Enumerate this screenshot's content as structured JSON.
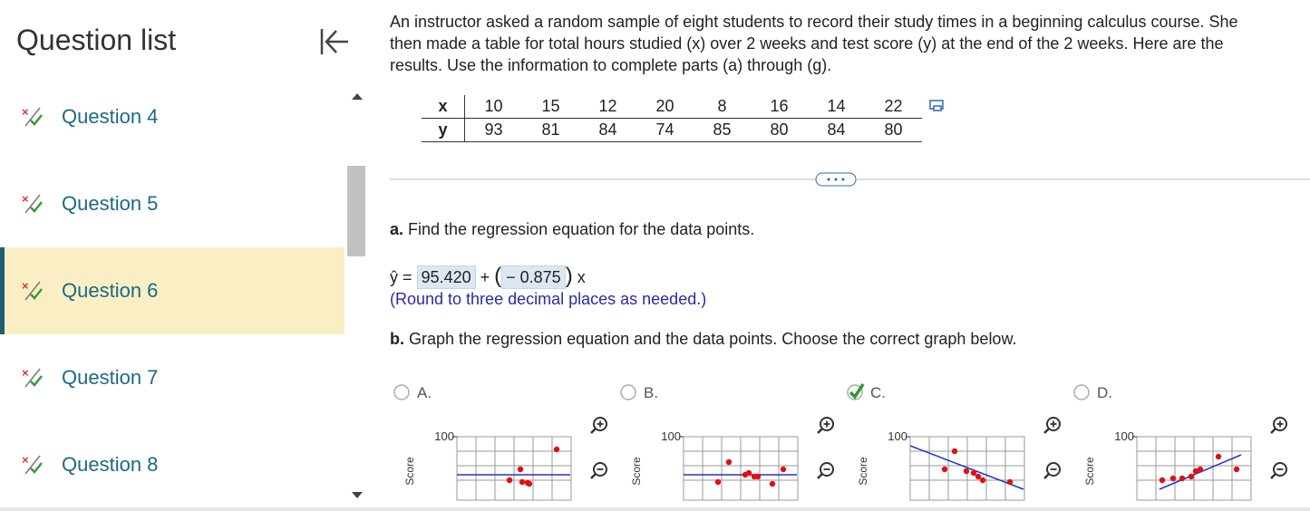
{
  "sidebar": {
    "title": "Question list",
    "questions": [
      "Question 4",
      "Question 5",
      "Question 6",
      "Question 7",
      "Question 8"
    ]
  },
  "problem": {
    "intro_lines": [
      "An instructor asked a random sample of eight students to record their study times in a beginning calculus course. She",
      "then made a table for total hours studied (x) over 2 weeks and test score (y) at the end of the 2 weeks. Here are the",
      "results. Use the information to complete parts (a) through (g)."
    ],
    "table": {
      "x_label": "x",
      "y_label": "y",
      "x": [
        10,
        15,
        12,
        20,
        8,
        16,
        14,
        22
      ],
      "y": [
        93,
        81,
        84,
        74,
        85,
        80,
        84,
        80
      ]
    }
  },
  "part_a": {
    "label": "a.",
    "text": "Find the regression equation for the data points.",
    "yhat": "ŷ",
    "equals_plus": "=",
    "intercept": "95.420",
    "slope": "− 0.875",
    "x_var": "x",
    "note": "(Round to three decimal places as needed.)"
  },
  "part_b": {
    "label": "b.",
    "text": "Graph the regression equation and the data points. Choose the correct graph below.",
    "options": [
      {
        "label": "A.",
        "y_max": "100",
        "axis_label": "Score"
      },
      {
        "label": "B.",
        "y_max": "100",
        "axis_label": "Score"
      },
      {
        "label": "C.",
        "y_max": "100",
        "axis_label": "Score"
      },
      {
        "label": "D.",
        "y_max": "100",
        "axis_label": "Score"
      }
    ]
  }
}
